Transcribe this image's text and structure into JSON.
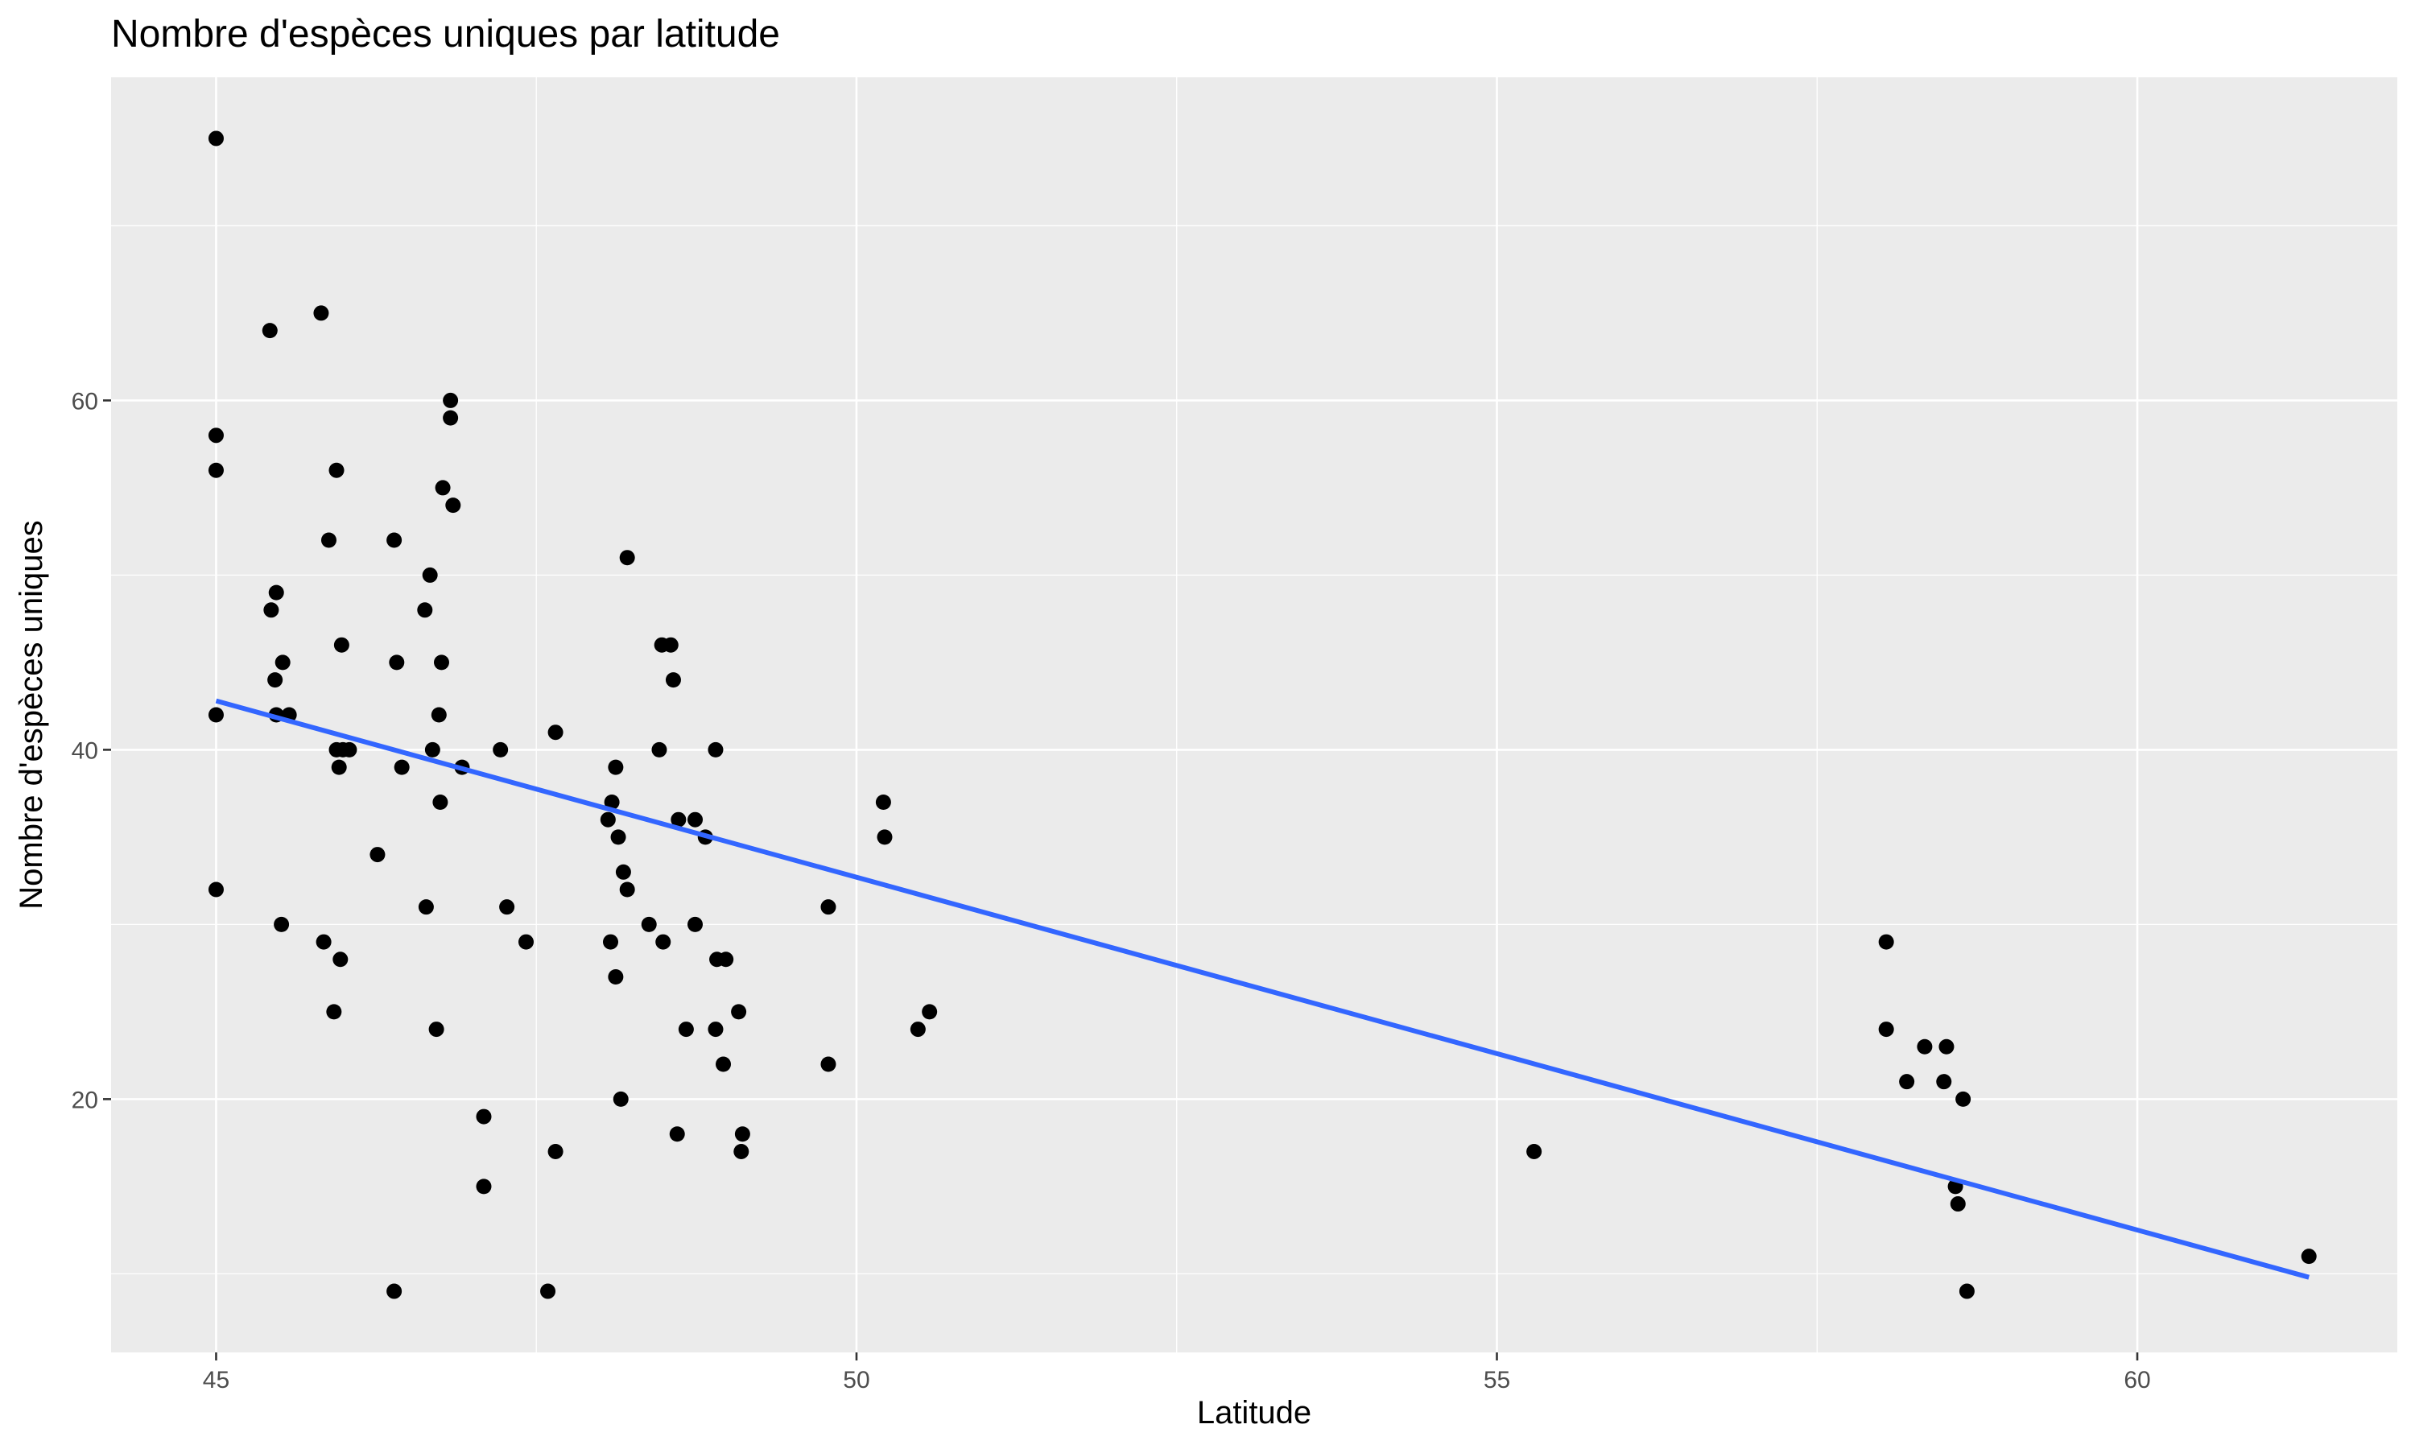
{
  "chart_data": {
    "type": "scatter",
    "title": "Nombre d'espèces uniques par latitude",
    "xlabel": "Latitude",
    "ylabel": "Nombre d'espèces uniques",
    "xlim": [
      44.18,
      62.03
    ],
    "ylim": [
      5.5,
      78.5
    ],
    "x_ticks": [
      45,
      50,
      55,
      60
    ],
    "x_tick_labels": [
      "45",
      "50",
      "55",
      "60"
    ],
    "x_minor_ticks": [
      47.5,
      52.5,
      57.5
    ],
    "y_ticks": [
      20,
      40,
      60
    ],
    "y_tick_labels": [
      "20",
      "40",
      "60"
    ],
    "y_minor_ticks": [
      10,
      30,
      50,
      70
    ],
    "grid": true,
    "legend": "none",
    "colors": {
      "panel_background": "#ebebeb",
      "grid": "#ffffff",
      "points": "#000000",
      "trend_line": "#3366ff"
    },
    "points": [
      {
        "x": 45.0,
        "y": 75
      },
      {
        "x": 45.0,
        "y": 58
      },
      {
        "x": 45.0,
        "y": 56
      },
      {
        "x": 45.0,
        "y": 42
      },
      {
        "x": 45.0,
        "y": 32
      },
      {
        "x": 45.42,
        "y": 64
      },
      {
        "x": 45.82,
        "y": 65
      },
      {
        "x": 45.47,
        "y": 49
      },
      {
        "x": 45.43,
        "y": 48
      },
      {
        "x": 45.52,
        "y": 45
      },
      {
        "x": 45.46,
        "y": 44
      },
      {
        "x": 45.47,
        "y": 42
      },
      {
        "x": 45.57,
        "y": 42
      },
      {
        "x": 45.51,
        "y": 30
      },
      {
        "x": 45.84,
        "y": 29
      },
      {
        "x": 45.94,
        "y": 56
      },
      {
        "x": 45.88,
        "y": 52
      },
      {
        "x": 45.98,
        "y": 46
      },
      {
        "x": 45.94,
        "y": 40
      },
      {
        "x": 45.99,
        "y": 40
      },
      {
        "x": 46.04,
        "y": 40
      },
      {
        "x": 45.96,
        "y": 39
      },
      {
        "x": 45.97,
        "y": 28
      },
      {
        "x": 45.92,
        "y": 25
      },
      {
        "x": 46.26,
        "y": 34
      },
      {
        "x": 46.39,
        "y": 52
      },
      {
        "x": 46.41,
        "y": 45
      },
      {
        "x": 46.45,
        "y": 39
      },
      {
        "x": 46.39,
        "y": 9
      },
      {
        "x": 46.63,
        "y": 48
      },
      {
        "x": 46.67,
        "y": 50
      },
      {
        "x": 46.69,
        "y": 40
      },
      {
        "x": 46.64,
        "y": 31
      },
      {
        "x": 46.72,
        "y": 24
      },
      {
        "x": 46.77,
        "y": 55
      },
      {
        "x": 46.76,
        "y": 45
      },
      {
        "x": 46.74,
        "y": 42
      },
      {
        "x": 46.75,
        "y": 37
      },
      {
        "x": 46.83,
        "y": 60
      },
      {
        "x": 46.83,
        "y": 59
      },
      {
        "x": 46.85,
        "y": 54
      },
      {
        "x": 46.92,
        "y": 39
      },
      {
        "x": 47.09,
        "y": 19
      },
      {
        "x": 47.09,
        "y": 15
      },
      {
        "x": 47.22,
        "y": 40
      },
      {
        "x": 47.27,
        "y": 31
      },
      {
        "x": 47.42,
        "y": 29
      },
      {
        "x": 47.59,
        "y": 9
      },
      {
        "x": 47.65,
        "y": 41
      },
      {
        "x": 47.65,
        "y": 17
      },
      {
        "x": 48.06,
        "y": 36
      },
      {
        "x": 48.09,
        "y": 37
      },
      {
        "x": 48.12,
        "y": 39
      },
      {
        "x": 48.14,
        "y": 35
      },
      {
        "x": 48.18,
        "y": 33
      },
      {
        "x": 48.21,
        "y": 32
      },
      {
        "x": 48.08,
        "y": 29
      },
      {
        "x": 48.12,
        "y": 27
      },
      {
        "x": 48.16,
        "y": 20
      },
      {
        "x": 48.21,
        "y": 51
      },
      {
        "x": 48.48,
        "y": 46
      },
      {
        "x": 48.55,
        "y": 46
      },
      {
        "x": 48.57,
        "y": 44
      },
      {
        "x": 48.46,
        "y": 40
      },
      {
        "x": 48.61,
        "y": 36
      },
      {
        "x": 48.38,
        "y": 30
      },
      {
        "x": 48.49,
        "y": 29
      },
      {
        "x": 48.6,
        "y": 18
      },
      {
        "x": 48.67,
        "y": 24
      },
      {
        "x": 48.74,
        "y": 36
      },
      {
        "x": 48.82,
        "y": 35
      },
      {
        "x": 48.74,
        "y": 30
      },
      {
        "x": 48.9,
        "y": 40
      },
      {
        "x": 48.91,
        "y": 28
      },
      {
        "x": 48.98,
        "y": 28
      },
      {
        "x": 48.9,
        "y": 24
      },
      {
        "x": 48.96,
        "y": 22
      },
      {
        "x": 49.08,
        "y": 25
      },
      {
        "x": 49.11,
        "y": 18
      },
      {
        "x": 49.1,
        "y": 17
      },
      {
        "x": 49.78,
        "y": 31
      },
      {
        "x": 49.78,
        "y": 22
      },
      {
        "x": 50.21,
        "y": 37
      },
      {
        "x": 50.22,
        "y": 35
      },
      {
        "x": 50.48,
        "y": 24
      },
      {
        "x": 50.57,
        "y": 25
      },
      {
        "x": 55.29,
        "y": 17
      },
      {
        "x": 58.04,
        "y": 29
      },
      {
        "x": 58.04,
        "y": 24
      },
      {
        "x": 58.2,
        "y": 21
      },
      {
        "x": 58.34,
        "y": 23
      },
      {
        "x": 58.51,
        "y": 23
      },
      {
        "x": 58.49,
        "y": 21
      },
      {
        "x": 58.64,
        "y": 20
      },
      {
        "x": 58.58,
        "y": 15
      },
      {
        "x": 58.6,
        "y": 14
      },
      {
        "x": 58.67,
        "y": 9
      },
      {
        "x": 61.34,
        "y": 11
      }
    ],
    "trend_line": {
      "x": [
        45.0,
        61.34
      ],
      "y": [
        42.8,
        9.8
      ]
    }
  }
}
